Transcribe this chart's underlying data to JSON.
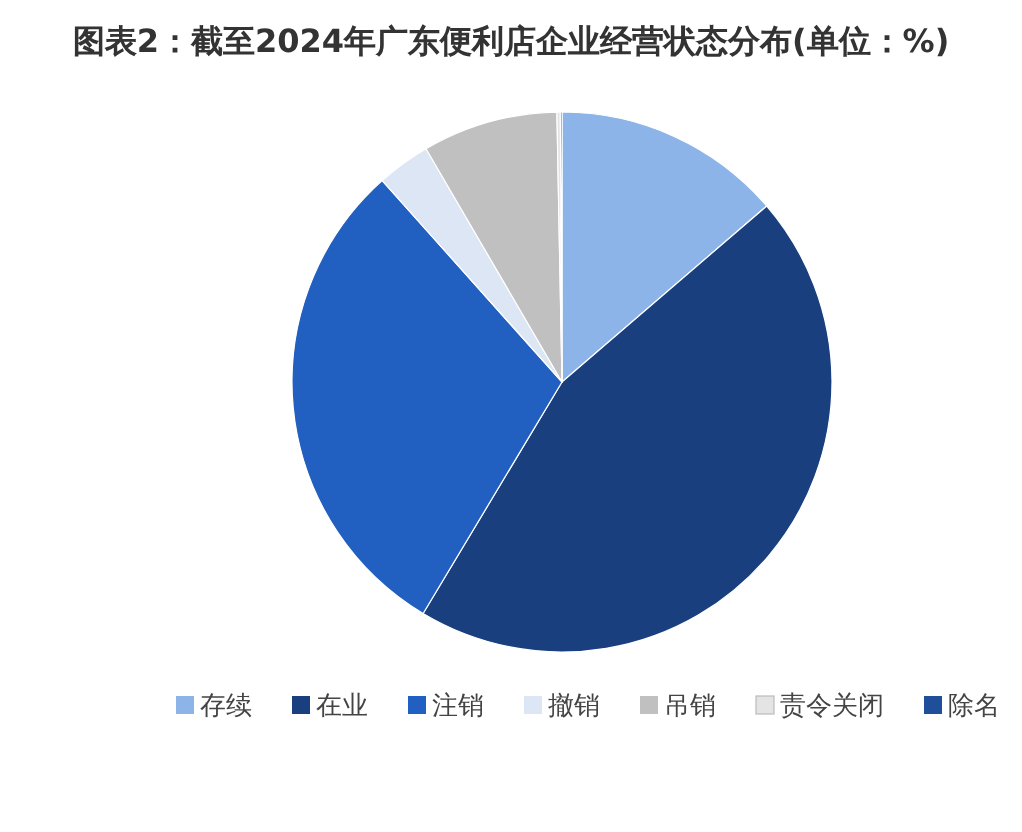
{
  "chart_data": {
    "type": "pie",
    "title": "图表2：截至2024年广东便利店企业经营状态分布(单位：%)",
    "categories": [
      "存续",
      "在业",
      "注销",
      "撤销",
      "吊销",
      "责令关闭",
      "除名"
    ],
    "values": [
      13.7,
      44.9,
      29.8,
      3.2,
      8.1,
      0.2,
      0.1
    ],
    "colors": [
      "#8db4e8",
      "#1a3f7e",
      "#2160c0",
      "#dce6f5",
      "#c0c0c0",
      "#e4e4e4",
      "#1f4e9a"
    ],
    "legend": "bottom"
  }
}
